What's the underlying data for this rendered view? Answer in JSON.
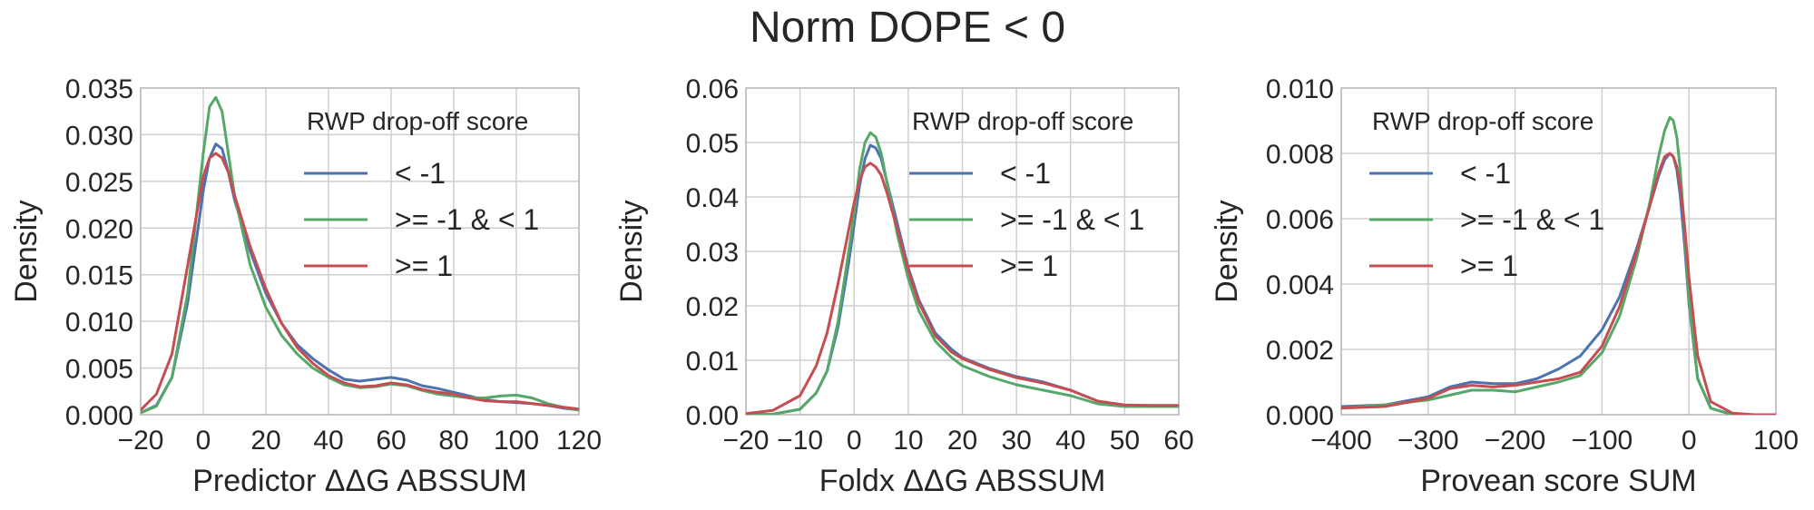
{
  "suptitle": "Norm DOPE < 0",
  "chart_data": [
    {
      "type": "line",
      "xlabel": "Predictor ΔΔG ABSSUM",
      "ylabel": "Density",
      "xlim": [
        -20,
        120
      ],
      "ylim": [
        0,
        0.035
      ],
      "xticks": [
        -20,
        0,
        20,
        40,
        60,
        80,
        100,
        120
      ],
      "xtick_labels": [
        "−20",
        "0",
        "20",
        "40",
        "60",
        "80",
        "100",
        "120"
      ],
      "yticks": [
        0,
        0.005,
        0.01,
        0.015,
        0.02,
        0.025,
        0.03,
        0.035
      ],
      "ytick_labels": [
        "0.000",
        "0.005",
        "0.010",
        "0.015",
        "0.020",
        "0.025",
        "0.030",
        "0.035"
      ],
      "grid": true,
      "legend": {
        "title": "RWP drop-off score",
        "position": "upper-right"
      },
      "series": [
        {
          "name": "< -1",
          "color": "#4c72b0",
          "x": [
            -20,
            -15,
            -10,
            -5,
            0,
            2,
            4,
            6,
            8,
            10,
            15,
            20,
            25,
            30,
            35,
            40,
            45,
            50,
            55,
            60,
            65,
            70,
            75,
            80,
            85,
            90,
            95,
            100,
            105,
            110,
            115,
            120
          ],
          "y": [
            0.0002,
            0.001,
            0.004,
            0.012,
            0.024,
            0.0275,
            0.029,
            0.0285,
            0.026,
            0.023,
            0.0175,
            0.013,
            0.0098,
            0.0075,
            0.006,
            0.0048,
            0.0038,
            0.0036,
            0.0038,
            0.004,
            0.0037,
            0.0031,
            0.0028,
            0.0024,
            0.002,
            0.0016,
            0.0014,
            0.0013,
            0.0012,
            0.001,
            0.0007,
            0.0005
          ]
        },
        {
          "name": ">= -1 & < 1",
          "color": "#55a868",
          "x": [
            -20,
            -15,
            -10,
            -5,
            0,
            2,
            4,
            6,
            8,
            10,
            15,
            20,
            25,
            30,
            35,
            40,
            45,
            50,
            55,
            60,
            65,
            70,
            75,
            80,
            85,
            90,
            95,
            100,
            105,
            110,
            115,
            120
          ],
          "y": [
            0.0002,
            0.0009,
            0.004,
            0.013,
            0.028,
            0.033,
            0.034,
            0.0325,
            0.028,
            0.0235,
            0.016,
            0.0115,
            0.0085,
            0.0065,
            0.005,
            0.004,
            0.0032,
            0.0029,
            0.003,
            0.0033,
            0.0031,
            0.0026,
            0.0022,
            0.002,
            0.0018,
            0.0018,
            0.002,
            0.0021,
            0.0018,
            0.0012,
            0.0008,
            0.0005
          ]
        },
        {
          "name": ">= 1",
          "color": "#c44e52",
          "x": [
            -20,
            -15,
            -10,
            -5,
            0,
            2,
            4,
            6,
            8,
            10,
            15,
            20,
            25,
            30,
            35,
            40,
            45,
            50,
            55,
            60,
            65,
            70,
            75,
            80,
            85,
            90,
            95,
            100,
            105,
            110,
            115,
            120
          ],
          "y": [
            0.0005,
            0.0022,
            0.0065,
            0.016,
            0.0255,
            0.0275,
            0.028,
            0.0275,
            0.026,
            0.0235,
            0.018,
            0.0135,
            0.0098,
            0.0072,
            0.0055,
            0.0042,
            0.0034,
            0.003,
            0.0031,
            0.0034,
            0.0032,
            0.0027,
            0.0024,
            0.0022,
            0.0018,
            0.0015,
            0.0014,
            0.0014,
            0.0012,
            0.001,
            0.0008,
            0.0006
          ]
        }
      ]
    },
    {
      "type": "line",
      "xlabel": "Foldx ΔΔG ABSSUM",
      "ylabel": "Density",
      "xlim": [
        -20,
        60
      ],
      "ylim": [
        0,
        0.06
      ],
      "xticks": [
        -20,
        -10,
        0,
        10,
        20,
        30,
        40,
        50,
        60
      ],
      "xtick_labels": [
        "−20",
        "−10",
        "0",
        "10",
        "20",
        "30",
        "40",
        "50",
        "60"
      ],
      "yticks": [
        0,
        0.01,
        0.02,
        0.03,
        0.04,
        0.05,
        0.06
      ],
      "ytick_labels": [
        "0.00",
        "0.01",
        "0.02",
        "0.03",
        "0.04",
        "0.05",
        "0.06"
      ],
      "grid": true,
      "legend": {
        "title": "RWP drop-off score",
        "position": "upper-right"
      },
      "series": [
        {
          "name": "< -1",
          "color": "#4c72b0",
          "x": [
            -20,
            -15,
            -10,
            -7,
            -5,
            -3,
            -1,
            0,
            1,
            2,
            3,
            4,
            5,
            6,
            8,
            10,
            12,
            15,
            18,
            20,
            25,
            30,
            35,
            40,
            45,
            50,
            55,
            60
          ],
          "y": [
            0,
            0.0001,
            0.001,
            0.004,
            0.008,
            0.016,
            0.028,
            0.035,
            0.042,
            0.047,
            0.0495,
            0.049,
            0.047,
            0.043,
            0.035,
            0.027,
            0.021,
            0.015,
            0.012,
            0.0105,
            0.0085,
            0.007,
            0.006,
            0.0045,
            0.0025,
            0.0017,
            0.0016,
            0.0016
          ]
        },
        {
          "name": ">= -1 & < 1",
          "color": "#55a868",
          "x": [
            -20,
            -15,
            -10,
            -7,
            -5,
            -3,
            -1,
            0,
            1,
            2,
            3,
            4,
            5,
            6,
            8,
            10,
            12,
            15,
            18,
            20,
            25,
            30,
            35,
            40,
            45,
            50,
            55,
            60
          ],
          "y": [
            0,
            0.0001,
            0.001,
            0.004,
            0.008,
            0.017,
            0.03,
            0.037,
            0.045,
            0.05,
            0.0518,
            0.051,
            0.048,
            0.043,
            0.033,
            0.025,
            0.019,
            0.0135,
            0.0105,
            0.009,
            0.007,
            0.0055,
            0.0045,
            0.0035,
            0.002,
            0.0015,
            0.0015,
            0.0015
          ]
        },
        {
          "name": ">= 1",
          "color": "#c44e52",
          "x": [
            -20,
            -15,
            -10,
            -7,
            -5,
            -3,
            -1,
            0,
            1,
            2,
            3,
            4,
            5,
            6,
            8,
            10,
            12,
            15,
            18,
            20,
            25,
            30,
            35,
            40,
            45,
            50,
            55,
            60
          ],
          "y": [
            0.0002,
            0.0008,
            0.0035,
            0.009,
            0.015,
            0.024,
            0.034,
            0.039,
            0.043,
            0.0455,
            0.0462,
            0.0455,
            0.044,
            0.041,
            0.034,
            0.0265,
            0.0205,
            0.0145,
            0.0115,
            0.0103,
            0.0083,
            0.0068,
            0.0058,
            0.0045,
            0.0025,
            0.0018,
            0.0017,
            0.0017
          ]
        }
      ]
    },
    {
      "type": "line",
      "xlabel": "Provean score SUM",
      "ylabel": "Density",
      "xlim": [
        -400,
        100
      ],
      "ylim": [
        0,
        0.01
      ],
      "xticks": [
        -400,
        -300,
        -200,
        -100,
        0,
        100
      ],
      "xtick_labels": [
        "−400",
        "−300",
        "−200",
        "−100",
        "0",
        "100"
      ],
      "yticks": [
        0,
        0.002,
        0.004,
        0.006,
        0.008,
        0.01
      ],
      "ytick_labels": [
        "0.000",
        "0.002",
        "0.004",
        "0.006",
        "0.008",
        "0.010"
      ],
      "grid": true,
      "legend": {
        "title": "RWP drop-off score",
        "position": "upper-left"
      },
      "series": [
        {
          "name": "< -1",
          "color": "#4c72b0",
          "x": [
            -400,
            -350,
            -300,
            -275,
            -250,
            -225,
            -200,
            -175,
            -150,
            -125,
            -100,
            -80,
            -60,
            -45,
            -35,
            -28,
            -22,
            -18,
            -14,
            -10,
            -5,
            0,
            10,
            25,
            50,
            75,
            100
          ],
          "y": [
            0.00025,
            0.0003,
            0.00055,
            0.00085,
            0.001,
            0.00095,
            0.00095,
            0.0011,
            0.0014,
            0.0018,
            0.0026,
            0.0036,
            0.0051,
            0.0064,
            0.0073,
            0.0078,
            0.008,
            0.0079,
            0.0075,
            0.0067,
            0.0052,
            0.0034,
            0.0011,
            0.0002,
            0,
            0,
            0
          ]
        },
        {
          "name": ">= -1 & < 1",
          "color": "#55a868",
          "x": [
            -400,
            -350,
            -300,
            -275,
            -250,
            -225,
            -200,
            -175,
            -150,
            -125,
            -100,
            -80,
            -60,
            -45,
            -35,
            -28,
            -22,
            -18,
            -14,
            -10,
            -5,
            0,
            10,
            25,
            50,
            75,
            100
          ],
          "y": [
            0.0002,
            0.0003,
            0.00045,
            0.0006,
            0.00075,
            0.00075,
            0.0007,
            0.00085,
            0.001,
            0.0012,
            0.0019,
            0.003,
            0.0048,
            0.0065,
            0.0079,
            0.0087,
            0.0091,
            0.009,
            0.0085,
            0.0075,
            0.0056,
            0.0035,
            0.0011,
            0.0002,
            0,
            0,
            0
          ]
        },
        {
          "name": ">= 1",
          "color": "#c44e52",
          "x": [
            -400,
            -350,
            -300,
            -275,
            -250,
            -225,
            -200,
            -175,
            -150,
            -125,
            -100,
            -80,
            -60,
            -45,
            -35,
            -28,
            -22,
            -18,
            -14,
            -10,
            -5,
            0,
            10,
            25,
            50,
            75,
            100
          ],
          "y": [
            0.0002,
            0.00025,
            0.0005,
            0.0008,
            0.0009,
            0.00085,
            0.0009,
            0.001,
            0.0011,
            0.0013,
            0.0021,
            0.0033,
            0.005,
            0.0064,
            0.0074,
            0.0079,
            0.008,
            0.0079,
            0.0076,
            0.007,
            0.0058,
            0.0042,
            0.0018,
            0.0004,
            5e-05,
            0,
            0
          ]
        }
      ]
    }
  ]
}
